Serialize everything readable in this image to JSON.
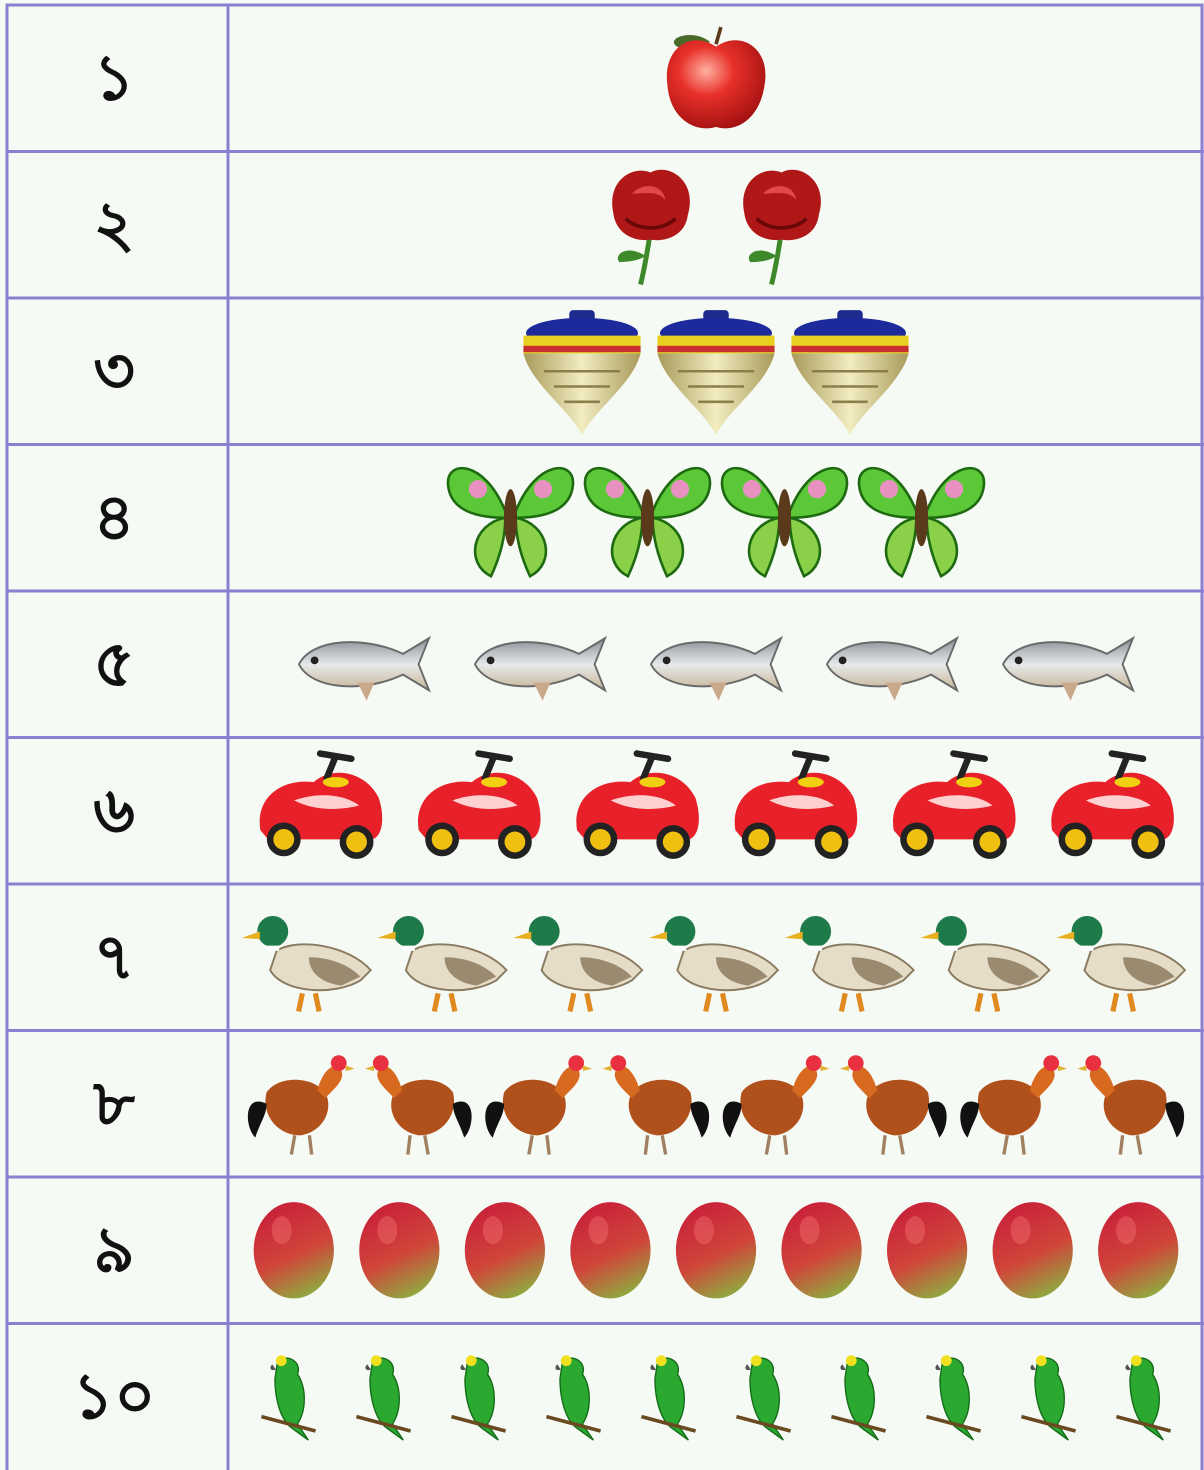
{
  "table": {
    "rows": [
      {
        "numeral": "১",
        "count": 1
      },
      {
        "numeral": "২",
        "count": 2
      },
      {
        "numeral": "৩",
        "count": 3
      },
      {
        "numeral": "৪",
        "count": 4
      },
      {
        "numeral": "৫",
        "count": 5
      },
      {
        "numeral": "৬",
        "count": 6
      },
      {
        "numeral": "৭",
        "count": 7
      },
      {
        "numeral": "৮",
        "count": 8
      },
      {
        "numeral": "৯",
        "count": 9
      },
      {
        "numeral": "১০",
        "count": 10
      }
    ]
  }
}
